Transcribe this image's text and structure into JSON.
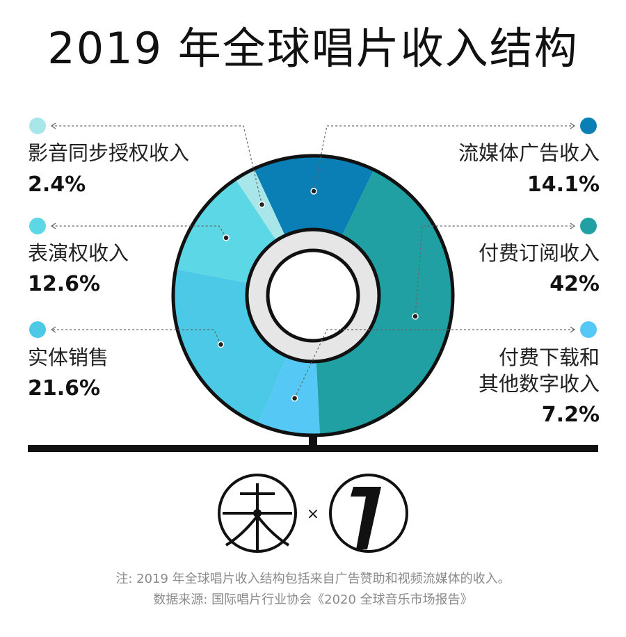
{
  "title": "2019 年全球唱片收入结构",
  "chart_data": {
    "type": "pie",
    "style": "donut",
    "title": "2019 年全球唱片收入结构",
    "slices": [
      {
        "name": "流媒体广告收入",
        "value": 14.1,
        "label": "14.1%",
        "color": "#0a7fb5"
      },
      {
        "name": "付费订阅收入",
        "value": 42,
        "label": "42%",
        "color": "#21a0a3"
      },
      {
        "name": "付费下载和其他数字收入",
        "name_lines": [
          "付费下载和",
          "其他数字收入"
        ],
        "value": 7.2,
        "label": "7.2%",
        "color": "#55c8f5"
      },
      {
        "name": "实体销售",
        "value": 21.6,
        "label": "21.6%",
        "color": "#4bc9e6"
      },
      {
        "name": "表演权收入",
        "value": 12.6,
        "label": "12.6%",
        "color": "#5bd7e6"
      },
      {
        "name": "影音同步授权收入",
        "value": 2.4,
        "label": "2.4%",
        "color": "#a9e6ea"
      }
    ]
  },
  "logos": {
    "times_sign": "×"
  },
  "footnote": {
    "line1": "注: 2019 年全球唱片收入结构包括来自广告赞助和视频流媒体的收入。",
    "line2": "数据来源: 国际唱片行业协会《2020 全球音乐市场报告》"
  }
}
